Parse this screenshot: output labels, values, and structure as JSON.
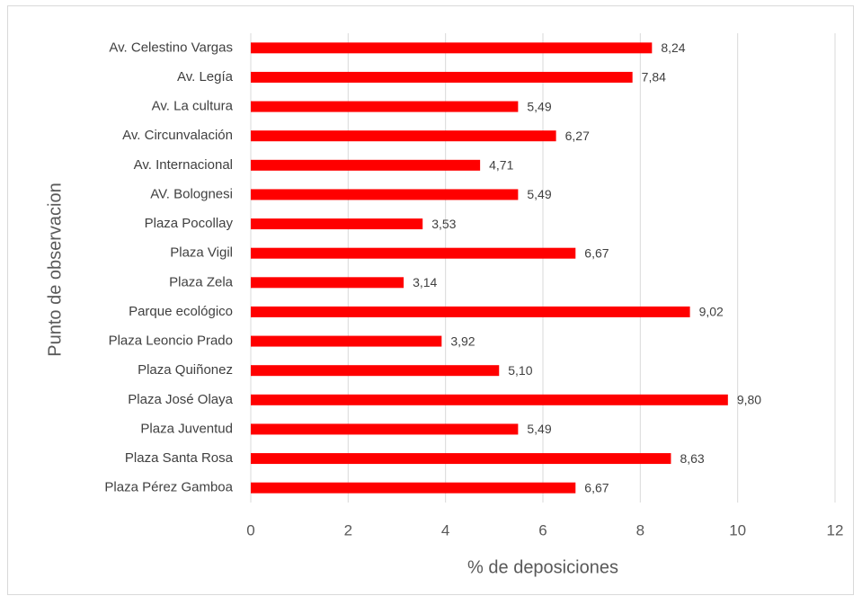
{
  "chart_data": {
    "type": "bar",
    "orientation": "horizontal",
    "categories": [
      "Av. Celestino Vargas",
      "Av. Legía",
      "Av. La cultura",
      "Av. Circunvalación",
      "Av. Internacional",
      "AV. Bolognesi",
      "Plaza Pocollay",
      "Plaza Vigil",
      "Plaza Zela",
      "Parque ecológico",
      "Plaza Leoncio Prado",
      "Plaza Quiñonez",
      "Plaza José Olaya",
      "Plaza Juventud",
      "Plaza Santa Rosa",
      "Plaza Pérez Gamboa"
    ],
    "values": [
      8.24,
      7.84,
      5.49,
      6.27,
      4.71,
      5.49,
      3.53,
      6.67,
      3.14,
      9.02,
      3.92,
      5.1,
      9.8,
      5.49,
      8.63,
      6.67
    ],
    "value_labels": [
      "8,24",
      "7,84",
      "5,49",
      "6,27",
      "4,71",
      "5,49",
      "3,53",
      "6,67",
      "3,14",
      "9,02",
      "3,92",
      "5,10",
      "9,80",
      "5,49",
      "8,63",
      "6,67"
    ],
    "color": "#ff0000",
    "xlim": [
      0,
      12
    ],
    "xticks": [
      0,
      2,
      4,
      6,
      8,
      10,
      12
    ],
    "grid": true,
    "xlabel": "% de deposiciones",
    "ylabel": "Punto de observacion"
  }
}
